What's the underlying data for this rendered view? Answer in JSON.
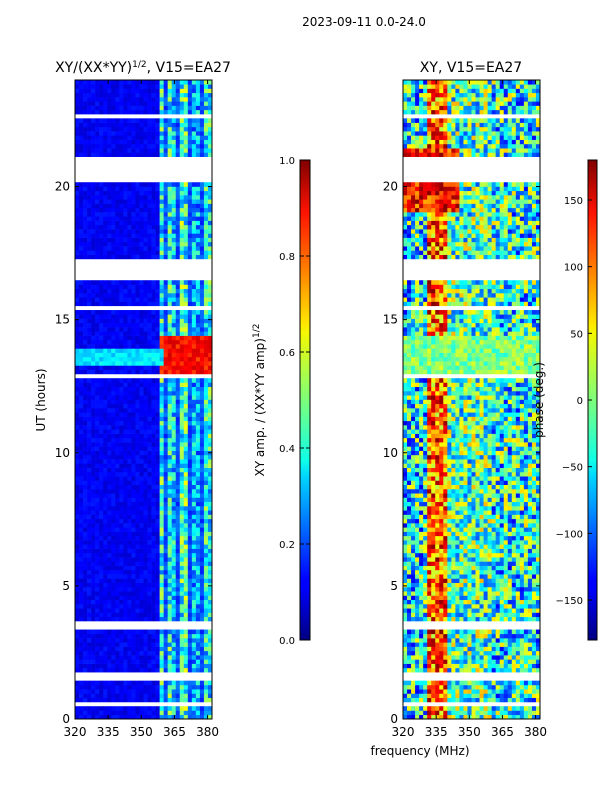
{
  "chart_data": [
    {
      "type": "heatmap",
      "suptitle": "2023-09-11 0.0-24.0",
      "title_base": "XY/(XX*YY)",
      "title_exp": "1/2",
      "title_suffix": ", V15=EA27",
      "xlabel": "",
      "ylabel": "UT (hours)",
      "xlim": [
        320,
        382
      ],
      "ylim": [
        0,
        24
      ],
      "xticks": [
        320,
        335,
        350,
        365,
        380
      ],
      "yticks": [
        0,
        5,
        10,
        15,
        20
      ],
      "colorbar": {
        "label": "XY amp. / (XX*YY amp)",
        "label_exp": "1/2",
        "range": [
          0.0,
          1.0
        ],
        "ticks": [
          "0.0",
          "0.2",
          "0.4",
          "0.6",
          "0.8",
          "1.0"
        ],
        "colormap": "jet"
      }
    },
    {
      "type": "heatmap",
      "title": "XY, V15=EA27",
      "xlabel": "frequency (MHz)",
      "ylabel": "",
      "xlim": [
        320,
        382
      ],
      "ylim": [
        0,
        24
      ],
      "xticks": [
        320,
        335,
        350,
        365,
        380
      ],
      "yticks": [
        0,
        5,
        10,
        15,
        20
      ],
      "colorbar": {
        "label": "phase (deg.)",
        "range": [
          -180,
          180
        ],
        "ticks": [
          "150",
          "100",
          "50",
          "0",
          "−50",
          "−100",
          "−150"
        ],
        "colormap": "jet"
      }
    }
  ]
}
